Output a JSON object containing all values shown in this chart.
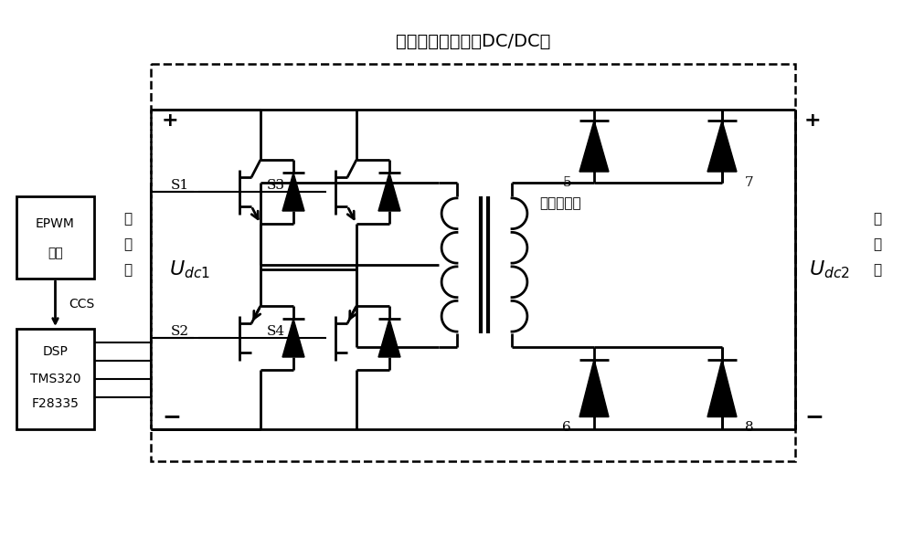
{
  "title": "高频变压隔离级（DC/DC）",
  "label_primary": [
    "一",
    "次",
    "侧"
  ],
  "label_secondary": [
    "二",
    "次",
    "侧"
  ],
  "label_xfmr": "高频变压器",
  "epwm_lines": [
    "EPWM",
    "程序"
  ],
  "dsp_lines": [
    "DSP",
    "TMS320",
    "F28335"
  ],
  "ccs_label": "CCS",
  "plus": "+",
  "minus": "−",
  "udc1": "$U_{dc1}$",
  "udc2": "$U_{dc2}$",
  "switch_labels": [
    "S1",
    "S2",
    "S3",
    "S4"
  ],
  "diode_labels": [
    "5",
    "6",
    "7",
    "8"
  ],
  "bg_color": "#ffffff",
  "line_color": "#000000",
  "figsize": [
    10.0,
    5.88
  ],
  "dpi": 100
}
